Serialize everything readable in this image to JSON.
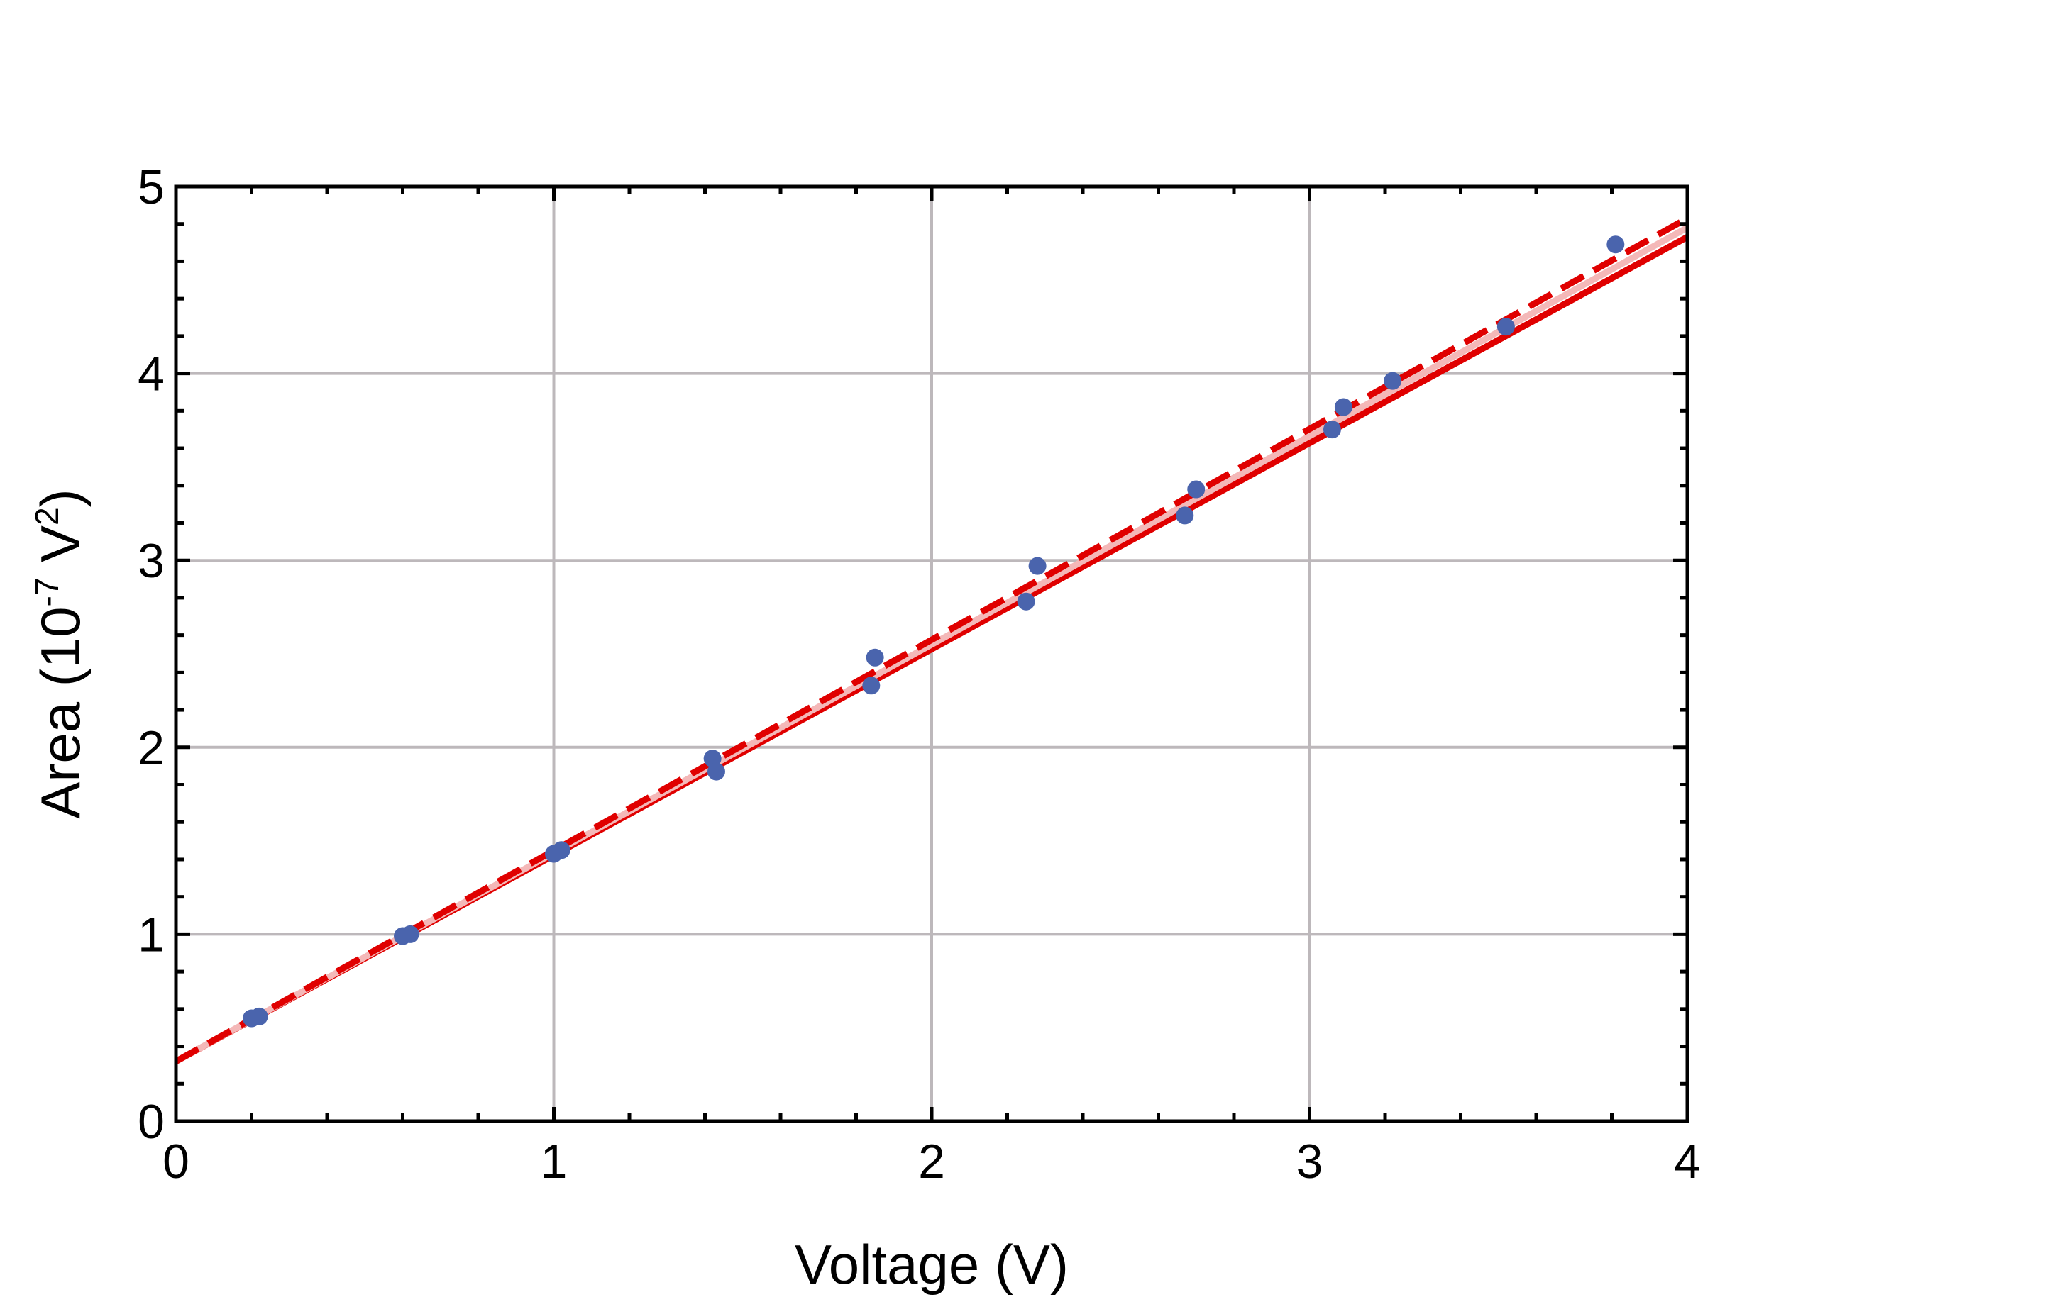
{
  "chart_data": {
    "type": "scatter",
    "title": "",
    "xlabel": "Voltage (V)",
    "ylabel": {
      "main": "Area (10",
      "exp": "-7",
      "unit": " V",
      "unit_exp": "2",
      "close": ")"
    },
    "xlim": [
      0,
      4
    ],
    "ylim": [
      0,
      5
    ],
    "xticks": [
      0,
      1,
      2,
      3,
      4
    ],
    "yticks": [
      0,
      1,
      2,
      3,
      4,
      5
    ],
    "grid": true,
    "legend": "none",
    "colors": {
      "points": "#4a64ad",
      "fit": "#e00000",
      "fit_light": "#f4b8b8",
      "grid": "#bdb8bb",
      "axis": "#000000"
    },
    "points": [
      {
        "x": 0.2,
        "y": 0.55
      },
      {
        "x": 0.22,
        "y": 0.56
      },
      {
        "x": 0.6,
        "y": 0.99
      },
      {
        "x": 0.62,
        "y": 1.0
      },
      {
        "x": 1.0,
        "y": 1.43
      },
      {
        "x": 1.02,
        "y": 1.45
      },
      {
        "x": 1.42,
        "y": 1.94
      },
      {
        "x": 1.43,
        "y": 1.87
      },
      {
        "x": 1.84,
        "y": 2.33
      },
      {
        "x": 1.85,
        "y": 2.48
      },
      {
        "x": 2.25,
        "y": 2.78
      },
      {
        "x": 2.28,
        "y": 2.97
      },
      {
        "x": 2.67,
        "y": 3.24
      },
      {
        "x": 2.7,
        "y": 3.38
      },
      {
        "x": 3.06,
        "y": 3.7
      },
      {
        "x": 3.09,
        "y": 3.82
      },
      {
        "x": 3.22,
        "y": 3.96
      },
      {
        "x": 3.52,
        "y": 4.25
      },
      {
        "x": 3.81,
        "y": 4.69
      }
    ],
    "series": [
      {
        "style": "solid",
        "x": [
          0,
          4
        ],
        "y": [
          0.32,
          4.73
        ]
      },
      {
        "style": "solid-light",
        "x": [
          0,
          4
        ],
        "y": [
          0.32,
          4.78
        ]
      },
      {
        "style": "dashed",
        "x": [
          0,
          4
        ],
        "y": [
          0.32,
          4.83
        ]
      }
    ]
  }
}
